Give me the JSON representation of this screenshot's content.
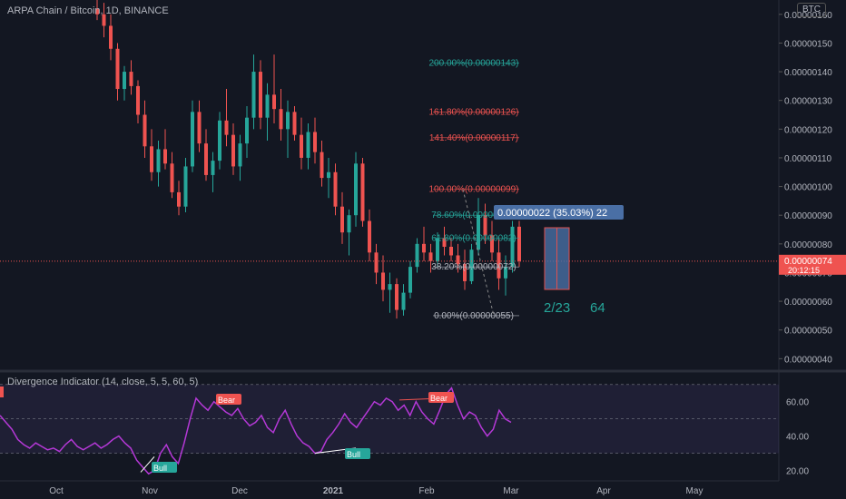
{
  "header": {
    "title": "ARPA Chain / Bitcoin, 1D, BINANCE",
    "currency_badge": "BTC"
  },
  "indicator": {
    "title": "Divergence Indicator (14, close, 5, 5, 60, 5)"
  },
  "colors": {
    "up": "#26a69a",
    "down": "#ef5350",
    "rsi": "#b438d6",
    "bg": "#131722",
    "price_line": "#ef5350"
  },
  "chart_data": [
    {
      "type": "candlestick",
      "price_axis_ticks": [
        "0.00000040",
        "0.00000050",
        "0.00000060",
        "0.00000070",
        "0.00000080",
        "0.00000090",
        "0.00000100",
        "0.00000110",
        "0.00000120",
        "0.00000130",
        "0.00000140",
        "0.00000150",
        "0.00000160"
      ],
      "time_axis_ticks": [
        "Oct",
        "Nov",
        "Dec",
        "2021",
        "Feb",
        "Mar",
        "Apr",
        "May"
      ],
      "ylim": [
        3.6e-07,
        1.65e-06
      ],
      "current_price": {
        "value": "0.00000074",
        "countdown": "20:12:15"
      },
      "fib_levels": [
        {
          "label": "200.00%(0.00000143)",
          "value": 1.43,
          "color": "#26a69a"
        },
        {
          "label": "161.80%(0.00000126)",
          "value": 1.26,
          "color": "#ef5350"
        },
        {
          "label": "141.40%(0.00000117)",
          "value": 1.17,
          "color": "#ef5350"
        },
        {
          "label": "100.00%(0.00000099)",
          "value": 0.99,
          "color": "#ef5350"
        },
        {
          "label": "78.60%(0.00000090)",
          "value": 0.9,
          "color": "#26a69a"
        },
        {
          "label": "61.80%(0.00000082)",
          "value": 0.82,
          "color": "#26a69a"
        },
        {
          "label": "38.20%(0.00000072)",
          "value": 0.72,
          "color": "#b2b5be"
        },
        {
          "label": "0.00%(0.00000055)",
          "value": 0.55,
          "color": "#b2b5be"
        }
      ],
      "measure": {
        "label": "0.00000022 (35.03%) 22",
        "date_text": "2/23",
        "days_text": "64"
      },
      "ohlc": [
        [
          1.62,
          1.66,
          1.58,
          1.6
        ],
        [
          1.6,
          1.64,
          1.52,
          1.56
        ],
        [
          1.56,
          1.6,
          1.44,
          1.48
        ],
        [
          1.48,
          1.5,
          1.3,
          1.34
        ],
        [
          1.34,
          1.42,
          1.3,
          1.4
        ],
        [
          1.4,
          1.44,
          1.32,
          1.35
        ],
        [
          1.35,
          1.37,
          1.22,
          1.25
        ],
        [
          1.25,
          1.3,
          1.1,
          1.14
        ],
        [
          1.14,
          1.2,
          1.02,
          1.05
        ],
        [
          1.05,
          1.16,
          1.0,
          1.13
        ],
        [
          1.13,
          1.2,
          1.06,
          1.08
        ],
        [
          1.08,
          1.12,
          0.96,
          0.98
        ],
        [
          0.98,
          1.02,
          0.9,
          0.93
        ],
        [
          0.93,
          1.1,
          0.91,
          1.07
        ],
        [
          1.07,
          1.3,
          1.05,
          1.26
        ],
        [
          1.26,
          1.3,
          1.12,
          1.15
        ],
        [
          1.15,
          1.2,
          1.02,
          1.04
        ],
        [
          1.04,
          1.12,
          0.98,
          1.09
        ],
        [
          1.09,
          1.26,
          1.06,
          1.23
        ],
        [
          1.23,
          1.34,
          1.14,
          1.18
        ],
        [
          1.18,
          1.22,
          1.04,
          1.07
        ],
        [
          1.07,
          1.18,
          1.02,
          1.15
        ],
        [
          1.15,
          1.28,
          1.1,
          1.24
        ],
        [
          1.24,
          1.46,
          1.2,
          1.4
        ],
        [
          1.4,
          1.44,
          1.2,
          1.24
        ],
        [
          1.24,
          1.36,
          1.16,
          1.32
        ],
        [
          1.32,
          1.46,
          1.22,
          1.27
        ],
        [
          1.27,
          1.34,
          1.16,
          1.2
        ],
        [
          1.2,
          1.3,
          1.1,
          1.26
        ],
        [
          1.26,
          1.28,
          1.16,
          1.18
        ],
        [
          1.18,
          1.24,
          1.06,
          1.1
        ],
        [
          1.1,
          1.22,
          1.06,
          1.19
        ],
        [
          1.19,
          1.24,
          1.08,
          1.12
        ],
        [
          1.12,
          1.16,
          1.0,
          1.03
        ],
        [
          1.03,
          1.1,
          0.96,
          1.05
        ],
        [
          1.05,
          1.08,
          0.9,
          0.93
        ],
        [
          0.93,
          0.98,
          0.8,
          0.84
        ],
        [
          0.84,
          0.92,
          0.76,
          0.9
        ],
        [
          0.9,
          1.12,
          0.86,
          1.08
        ],
        [
          1.08,
          1.1,
          0.86,
          0.88
        ],
        [
          0.88,
          0.92,
          0.74,
          0.77
        ],
        [
          0.77,
          0.8,
          0.66,
          0.7
        ],
        [
          0.7,
          0.76,
          0.6,
          0.64
        ],
        [
          0.64,
          0.7,
          0.56,
          0.66
        ],
        [
          0.66,
          0.68,
          0.54,
          0.57
        ],
        [
          0.57,
          0.66,
          0.55,
          0.63
        ],
        [
          0.63,
          0.74,
          0.61,
          0.72
        ],
        [
          0.72,
          0.82,
          0.7,
          0.8
        ],
        [
          0.8,
          0.86,
          0.74,
          0.77
        ],
        [
          0.77,
          0.8,
          0.7,
          0.74
        ],
        [
          0.74,
          0.84,
          0.72,
          0.82
        ],
        [
          0.82,
          0.86,
          0.76,
          0.79
        ],
        [
          0.79,
          0.82,
          0.74,
          0.76
        ],
        [
          0.76,
          0.8,
          0.7,
          0.73
        ],
        [
          0.73,
          0.78,
          0.64,
          0.67
        ],
        [
          0.67,
          0.8,
          0.66,
          0.78
        ],
        [
          0.78,
          0.96,
          0.76,
          0.9
        ],
        [
          0.9,
          0.94,
          0.8,
          0.83
        ],
        [
          0.83,
          0.88,
          0.74,
          0.77
        ],
        [
          0.77,
          0.82,
          0.64,
          0.68
        ],
        [
          0.68,
          0.76,
          0.62,
          0.72
        ],
        [
          0.72,
          0.88,
          0.7,
          0.86
        ],
        [
          0.86,
          0.88,
          0.72,
          0.74
        ]
      ]
    },
    {
      "type": "line",
      "name": "Divergence Indicator",
      "yaxis_ticks": [
        20,
        40,
        60
      ],
      "ylim": [
        15,
        72
      ],
      "bands": [
        30,
        50,
        70
      ],
      "values": [
        52,
        48,
        44,
        38,
        35,
        33,
        36,
        34,
        32,
        33,
        31,
        35,
        38,
        34,
        32,
        34,
        36,
        33,
        35,
        38,
        40,
        36,
        33,
        26,
        22,
        18,
        20,
        30,
        35,
        28,
        24,
        36,
        50,
        62,
        58,
        55,
        60,
        57,
        54,
        52,
        56,
        50,
        46,
        48,
        52,
        45,
        42,
        50,
        55,
        47,
        40,
        36,
        34,
        30,
        31,
        38,
        42,
        47,
        53,
        48,
        45,
        50,
        55,
        60,
        58,
        62,
        60,
        55,
        58,
        52,
        60,
        54,
        50,
        47,
        55,
        64,
        68,
        58,
        50,
        54,
        52,
        45,
        40,
        44,
        55,
        50,
        48
      ]
    }
  ],
  "annotations": {
    "bear_label": "Bear",
    "bull_label": "Bull"
  }
}
